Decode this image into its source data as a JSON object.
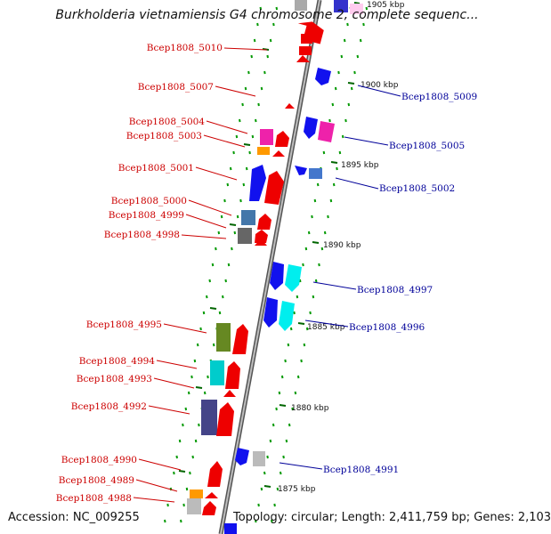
{
  "title": "Burkholderia vietnamiensis G4 chromosome 2, complete sequenc...",
  "footer": {
    "accession": "Accession: NC_009255",
    "topology": "Topology: circular; Length: 2,411,759 bp; Genes: 2,103"
  },
  "colors": {
    "left_label": "#cc0000",
    "right_label": "#000099",
    "backbone": "#808080",
    "tick": "#009900"
  },
  "kbp_ticks": [
    {
      "text": "1905 kbp"
    },
    {
      "text": "1900 kbp"
    },
    {
      "text": "1895 kbp"
    },
    {
      "text": "1890 kbp"
    },
    {
      "text": "1885 kbp"
    },
    {
      "text": "1880 kbp"
    },
    {
      "text": "1875 kbp"
    }
  ],
  "left_labels": [
    {
      "text": "Bcep1808_5010"
    },
    {
      "text": "Bcep1808_5007"
    },
    {
      "text": "Bcep1808_5004"
    },
    {
      "text": "Bcep1808_5003"
    },
    {
      "text": "Bcep1808_5001"
    },
    {
      "text": "Bcep1808_5000"
    },
    {
      "text": "Bcep1808_4999"
    },
    {
      "text": "Bcep1808_4998"
    },
    {
      "text": "Bcep1808_4995"
    },
    {
      "text": "Bcep1808_4994"
    },
    {
      "text": "Bcep1808_4993"
    },
    {
      "text": "Bcep1808_4992"
    },
    {
      "text": "Bcep1808_4990"
    },
    {
      "text": "Bcep1808_4989"
    },
    {
      "text": "Bcep1808_4988"
    }
  ],
  "right_labels": [
    {
      "text": "Bcep1808_5009"
    },
    {
      "text": "Bcep1808_5005"
    },
    {
      "text": "Bcep1808_5002"
    },
    {
      "text": "Bcep1808_4997"
    },
    {
      "text": "Bcep1808_4996"
    },
    {
      "text": "Bcep1808_4991"
    }
  ]
}
